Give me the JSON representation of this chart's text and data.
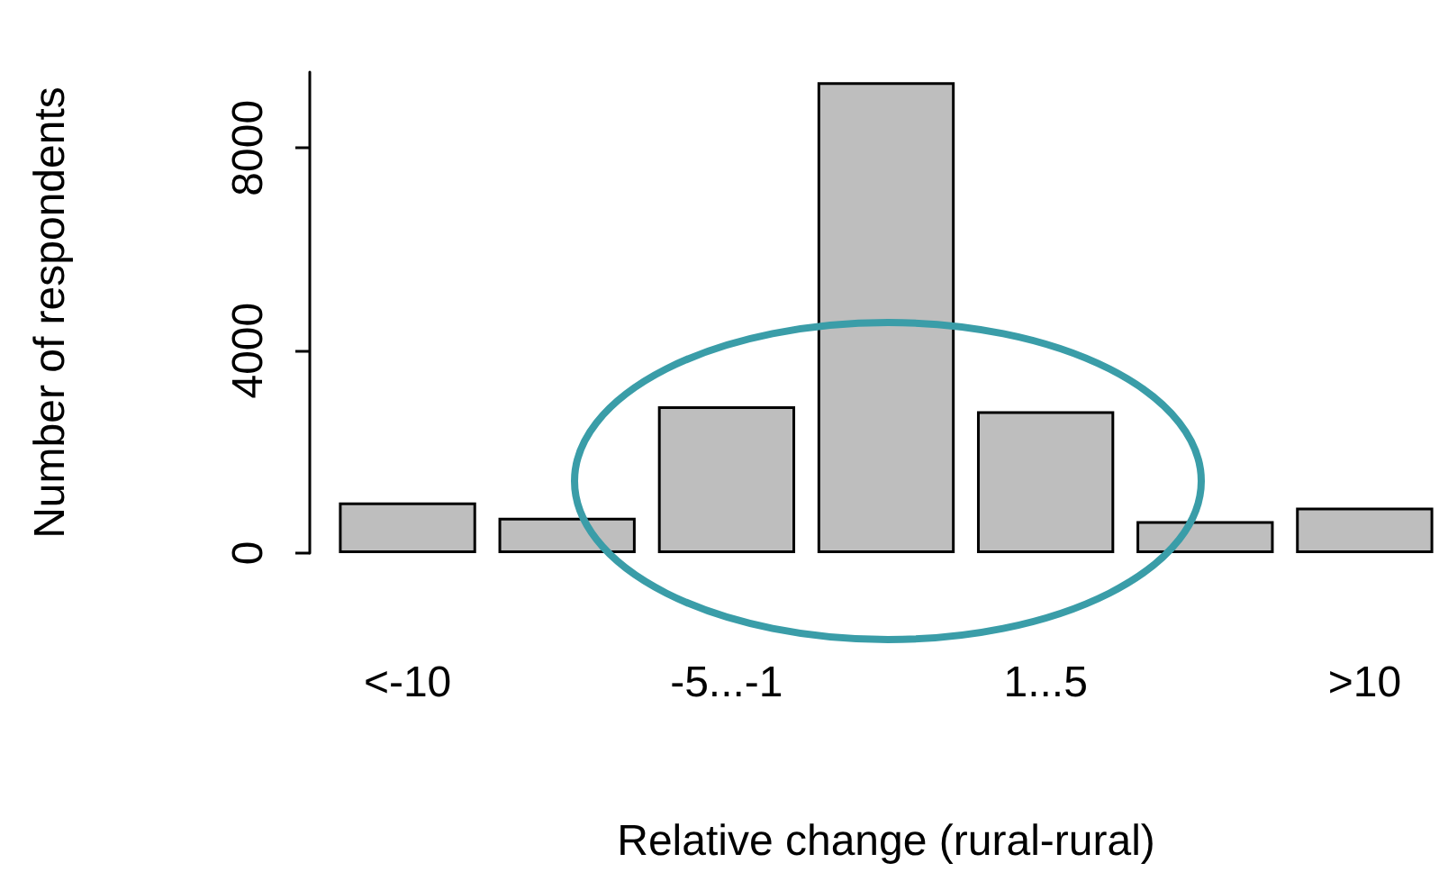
{
  "chart_data": {
    "type": "bar",
    "xlabel": "Relative change (rural-rural)",
    "ylabel": "Number of respondents",
    "categories": [
      "<-10",
      null,
      "-5...-1",
      null,
      "1...5",
      null,
      ">10"
    ],
    "values": [
      1000,
      700,
      2900,
      9300,
      2800,
      630,
      900
    ],
    "color": "#bebebe",
    "ylim": [
      0,
      9500
    ],
    "yticks": [
      0,
      4000,
      8000
    ],
    "grid": false
  }
}
